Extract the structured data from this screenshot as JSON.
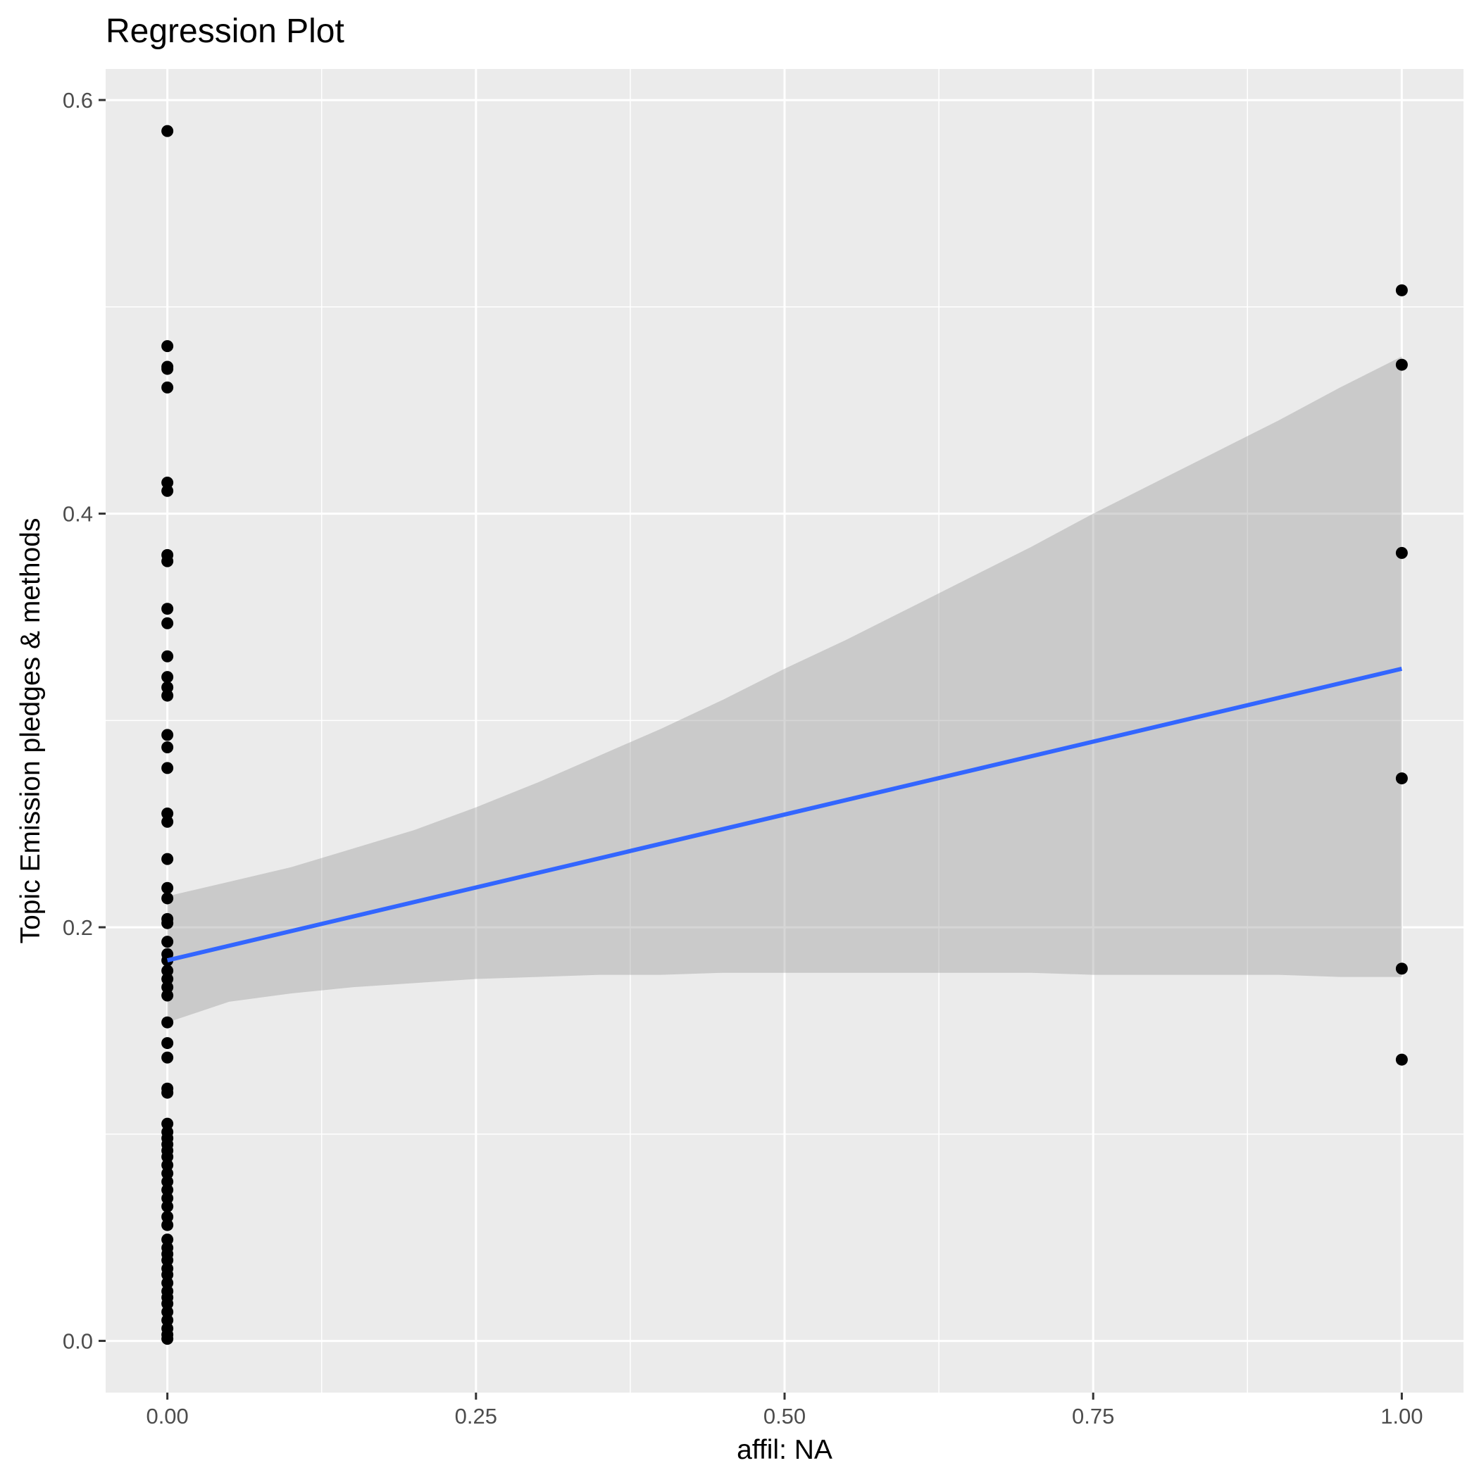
{
  "chart_data": {
    "type": "scatter",
    "title": "Regression Plot",
    "xlabel": "affil: NA",
    "ylabel": "Topic Emission pledges & methods",
    "xlim": [
      -0.05,
      1.05
    ],
    "ylim": [
      -0.025,
      0.615
    ],
    "x_ticks": [
      {
        "value": 0,
        "label": "0.00"
      },
      {
        "value": 0.25,
        "label": "0.25"
      },
      {
        "value": 0.5,
        "label": "0.50"
      },
      {
        "value": 0.75,
        "label": "0.75"
      },
      {
        "value": 1,
        "label": "1.00"
      }
    ],
    "y_ticks": [
      {
        "value": 0,
        "label": "0.0"
      },
      {
        "value": 0.2,
        "label": "0.2"
      },
      {
        "value": 0.4,
        "label": "0.4"
      },
      {
        "value": 0.6,
        "label": "0.6"
      }
    ],
    "x_minor_ticks": [
      0.125,
      0.375,
      0.625,
      0.875
    ],
    "y_minor_ticks": [
      0.1,
      0.3,
      0.5
    ],
    "grid": true,
    "colors": {
      "panel_background": "#ebebeb",
      "grid_line": "#ffffff",
      "point": "#000000",
      "regression_line": "#3366ff",
      "confidence_band": "#999999"
    },
    "points": {
      "x0_y": [
        0.585,
        0.481,
        0.471,
        0.47,
        0.461,
        0.415,
        0.411,
        0.38,
        0.377,
        0.354,
        0.347,
        0.331,
        0.321,
        0.316,
        0.312,
        0.293,
        0.287,
        0.277,
        0.255,
        0.251,
        0.233,
        0.219,
        0.214,
        0.204,
        0.202,
        0.193,
        0.187,
        0.184,
        0.179,
        0.175,
        0.171,
        0.167,
        0.154,
        0.144,
        0.137,
        0.122,
        0.12,
        0.105,
        0.101,
        0.098,
        0.095,
        0.092,
        0.089,
        0.085,
        0.081,
        0.077,
        0.073,
        0.069,
        0.065,
        0.06,
        0.056,
        0.049,
        0.045,
        0.042,
        0.039,
        0.035,
        0.032,
        0.028,
        0.024,
        0.021,
        0.018,
        0.014,
        0.01,
        0.006,
        0.003,
        0.001
      ],
      "x1_y": [
        0.508,
        0.472,
        0.381,
        0.272,
        0.18,
        0.136
      ]
    },
    "regression": {
      "x": [
        0,
        1
      ],
      "y": [
        0.184,
        0.325
      ]
    },
    "confidence_band": {
      "x": [
        0,
        0.05,
        0.1,
        0.15,
        0.2,
        0.25,
        0.3,
        0.35,
        0.4,
        0.45,
        0.5,
        0.55,
        0.6,
        0.65,
        0.7,
        0.75,
        0.8,
        0.85,
        0.9,
        0.95,
        1.0
      ],
      "lower": [
        0.154,
        0.164,
        0.168,
        0.171,
        0.173,
        0.175,
        0.176,
        0.177,
        0.177,
        0.178,
        0.178,
        0.178,
        0.178,
        0.178,
        0.178,
        0.177,
        0.177,
        0.177,
        0.177,
        0.176,
        0.176
      ],
      "upper": [
        0.215,
        0.222,
        0.229,
        0.238,
        0.247,
        0.258,
        0.27,
        0.283,
        0.296,
        0.31,
        0.325,
        0.339,
        0.354,
        0.369,
        0.384,
        0.4,
        0.415,
        0.43,
        0.445,
        0.461,
        0.476
      ]
    }
  }
}
